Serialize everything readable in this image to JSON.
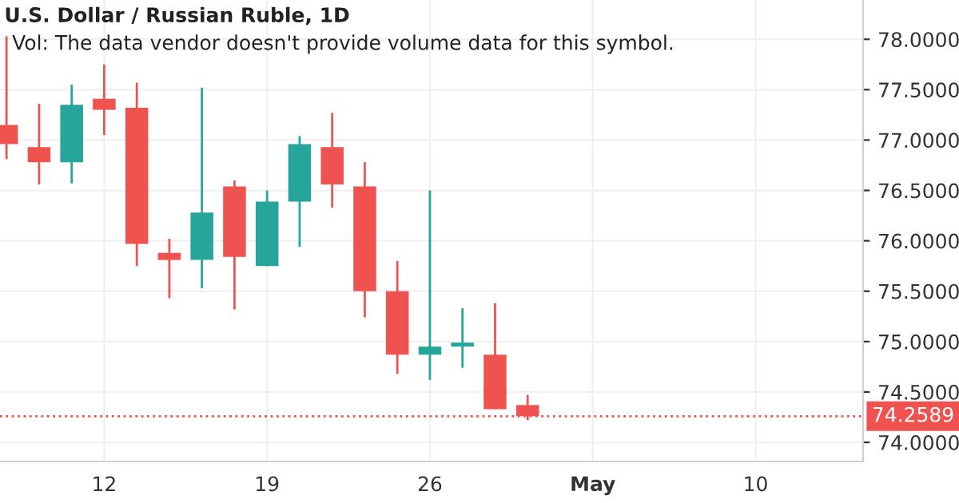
{
  "chart_data": {
    "type": "candlestick",
    "title": "U.S. Dollar / Russian Ruble, 1D",
    "annotations": [
      "Vol: The data vendor doesn't provide volume data for this symbol."
    ],
    "categories": [
      null,
      null,
      null,
      "12",
      null,
      null,
      null,
      null,
      "19",
      null,
      null,
      null,
      null,
      "26",
      null,
      null,
      null,
      null,
      "May",
      null,
      null,
      null,
      null,
      "10",
      null,
      null,
      null
    ],
    "ohlc": [
      [
        77.15,
        78.03,
        76.81,
        76.96
      ],
      [
        76.93,
        77.36,
        76.56,
        76.78
      ],
      [
        76.78,
        77.55,
        76.57,
        77.35
      ],
      [
        77.41,
        77.75,
        77.05,
        77.3
      ],
      [
        77.32,
        77.57,
        75.75,
        75.97
      ],
      [
        75.88,
        76.02,
        75.43,
        75.81
      ],
      [
        75.81,
        77.52,
        75.53,
        76.28
      ],
      [
        76.54,
        76.6,
        75.32,
        75.84
      ],
      [
        75.75,
        76.5,
        75.75,
        76.39
      ],
      [
        76.39,
        77.04,
        75.94,
        76.96
      ],
      [
        76.93,
        77.27,
        76.33,
        76.56
      ],
      [
        76.54,
        76.78,
        75.24,
        75.5
      ],
      [
        75.5,
        75.8,
        74.68,
        74.87
      ],
      [
        74.87,
        76.5,
        74.62,
        74.95
      ],
      [
        74.95,
        75.33,
        74.74,
        74.99
      ],
      [
        74.87,
        75.38,
        74.33,
        74.33
      ],
      [
        74.37,
        74.47,
        74.22,
        74.26
      ],
      null,
      null,
      null,
      null,
      null,
      null,
      null,
      null,
      null,
      null
    ],
    "colors": [
      "#ef5350",
      "#ef5350",
      "#26a69a",
      "#ef5350",
      "#ef5350",
      "#ef5350",
      "#26a69a",
      "#ef5350",
      "#26a69a",
      "#26a69a",
      "#ef5350",
      "#ef5350",
      "#ef5350",
      "#26a69a",
      "#26a69a",
      "#ef5350",
      "#ef5350",
      null,
      null,
      null,
      null,
      null,
      null,
      null,
      null,
      null,
      null
    ],
    "ylim": [
      73.81,
      78.39
    ],
    "yticks": [
      {
        "value": 74.0,
        "label": "74.0000"
      },
      {
        "value": 74.5,
        "label": "74.5000"
      },
      {
        "value": 75.0,
        "label": "75.0000"
      },
      {
        "value": 75.5,
        "label": "75.5000"
      },
      {
        "value": 76.0,
        "label": "76.0000"
      },
      {
        "value": 76.5,
        "label": "76.5000"
      },
      {
        "value": 77.0,
        "label": "77.0000"
      },
      {
        "value": 77.5,
        "label": "77.5000"
      },
      {
        "value": 78.0,
        "label": "78.0000"
      }
    ],
    "ref_lines": [
      {
        "axis": "y",
        "value": 74.2589,
        "label": "74.2589",
        "color": "#ef5350",
        "line_style": "dotted"
      }
    ],
    "grid": true
  }
}
